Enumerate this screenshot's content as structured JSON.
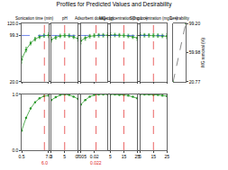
{
  "chart_data": {
    "type": "line",
    "title": "Profiles for Predicted Values and Desirability",
    "color": "#2e9b2e",
    "ylim": [
      20,
      120
    ],
    "yticks": [
      {
        "value": 20,
        "label": "20.0"
      },
      {
        "value": 99.3,
        "label": "99.3"
      },
      {
        "value": 120,
        "label": "120.0"
      }
    ],
    "predicted": 99.3,
    "desirability_ylim": [
      0,
      1
    ],
    "desirability_yticks": [
      {
        "value": 0,
        "label": "0.0"
      },
      {
        "value": 1,
        "label": "1.0"
      }
    ],
    "panels": [
      {
        "label": "Sonication time (min)",
        "x": [
          0.5,
          1.58,
          2.67,
          3.75,
          4.83,
          5.92,
          7.0
        ],
        "values": [
          58,
          75,
          86,
          93,
          97,
          99,
          99.5
        ],
        "error": [
          6,
          4,
          3,
          3,
          3,
          3,
          4
        ],
        "desirability": [
          0.35,
          0.58,
          0.75,
          0.86,
          0.93,
          0.97,
          0.98
        ],
        "xlim": [
          0.5,
          7.0
        ],
        "xticks": [
          0.5,
          {
            "value": 7,
            "label": "7.0"
          }
        ],
        "current": 6.0,
        "current_label": "6.0"
      },
      {
        "label": "pH",
        "x": [
          3,
          3.67,
          4.33,
          5,
          5.67,
          6.33,
          7
        ],
        "values": [
          92,
          96,
          98.5,
          99.3,
          98.8,
          97,
          94
        ],
        "error": [
          4,
          3,
          3,
          3,
          3,
          3,
          4
        ],
        "desirability": [
          0.9,
          0.95,
          0.99,
          1.0,
          0.99,
          0.96,
          0.92
        ],
        "xlim": [
          3,
          7
        ],
        "xticks": [
          3,
          5,
          7
        ],
        "current": 5
      },
      {
        "label": "Adsorbent dosage (g)",
        "x": [
          0.005,
          0.01,
          0.015,
          0.02,
          0.025,
          0.03,
          0.035
        ],
        "values": [
          90,
          95,
          98,
          99.2,
          99.5,
          99.6,
          99.6
        ],
        "error": [
          5,
          4,
          3,
          3,
          3,
          3,
          4
        ],
        "desirability": [
          0.82,
          0.9,
          0.96,
          0.99,
          1.0,
          1.0,
          1.0
        ],
        "xlim": [
          0.005,
          0.035
        ],
        "xticks": [
          0.005,
          0.02
        ],
        "current": 0.022,
        "current_label": "0.022"
      },
      {
        "label": "MG concentration (mg L⁻¹)",
        "x": [
          5,
          8.33,
          11.67,
          15,
          18.33,
          21.67,
          25
        ],
        "values": [
          100,
          100,
          99.6,
          99.3,
          98.5,
          97,
          95
        ],
        "error": [
          4,
          3,
          3,
          3,
          3,
          3,
          4
        ],
        "desirability": [
          1.0,
          1.0,
          0.99,
          0.99,
          0.98,
          0.96,
          0.93
        ],
        "xlim": [
          5,
          25
        ],
        "xticks": [
          5,
          15,
          25
        ],
        "current": 15
      },
      {
        "label": "SO concentration (mg L⁻¹)",
        "x": [
          5,
          8.33,
          11.67,
          15,
          18.33,
          21.67,
          25
        ],
        "values": [
          99.8,
          99.6,
          99.4,
          99.3,
          99,
          98.5,
          98
        ],
        "error": [
          4,
          3,
          3,
          3,
          3,
          3,
          4
        ],
        "desirability": [
          1.0,
          1.0,
          1.0,
          0.99,
          0.99,
          0.98,
          0.97
        ],
        "xlim": [
          5,
          25
        ],
        "xticks": [
          5,
          15,
          25
        ],
        "current": 15
      }
    ],
    "desirability_panel": {
      "label": "Desirability",
      "x": [
        0,
        1
      ],
      "values": [
        20.77,
        99.2
      ],
      "xlim": [
        0,
        1
      ],
      "ylim": [
        20.77,
        99.2
      ],
      "yticks": [
        20.77,
        59.98,
        {
          "value": 99.2,
          "label": "99.20"
        }
      ],
      "ylabel": "MG removal (%)",
      "line_style": "dash"
    }
  }
}
